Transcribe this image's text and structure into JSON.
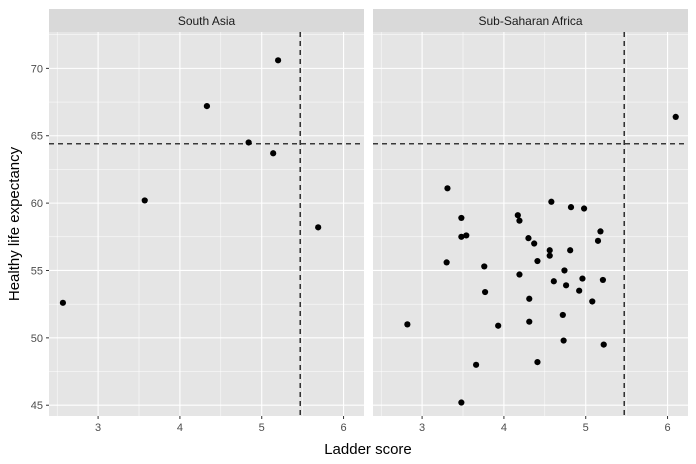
{
  "chart_data": {
    "type": "scatter",
    "xlabel": "Ladder score",
    "ylabel": "Healthy life expectancy",
    "xlim": [
      2.4,
      6.25
    ],
    "ylim": [
      44.2,
      72.7
    ],
    "x_ticks": [
      3,
      4,
      5,
      6
    ],
    "y_ticks": [
      45,
      50,
      55,
      60,
      65,
      70
    ],
    "grid": true,
    "reference_lines": {
      "x": 5.47,
      "y": 64.4
    },
    "colors": {
      "panel_bg": "#e5e5e5",
      "strip_bg": "#d9d9d9",
      "grid": "#ffffff",
      "point": "#000000",
      "ref_line": "#000000"
    },
    "facets": [
      {
        "label": "South Asia",
        "points": [
          {
            "x": 2.57,
            "y": 52.6
          },
          {
            "x": 3.57,
            "y": 60.2
          },
          {
            "x": 4.33,
            "y": 67.2
          },
          {
            "x": 4.84,
            "y": 64.5
          },
          {
            "x": 5.14,
            "y": 63.7
          },
          {
            "x": 5.2,
            "y": 70.6
          },
          {
            "x": 5.69,
            "y": 58.2
          }
        ]
      },
      {
        "label": "Sub-Saharan Africa",
        "points": [
          {
            "x": 2.82,
            "y": 51.0
          },
          {
            "x": 3.31,
            "y": 61.1
          },
          {
            "x": 3.3,
            "y": 55.6
          },
          {
            "x": 3.48,
            "y": 58.9
          },
          {
            "x": 3.48,
            "y": 57.5
          },
          {
            "x": 3.54,
            "y": 57.6
          },
          {
            "x": 3.48,
            "y": 45.2
          },
          {
            "x": 3.66,
            "y": 48.0
          },
          {
            "x": 3.76,
            "y": 55.3
          },
          {
            "x": 3.77,
            "y": 53.4
          },
          {
            "x": 3.93,
            "y": 50.9
          },
          {
            "x": 4.17,
            "y": 59.1
          },
          {
            "x": 4.19,
            "y": 58.7
          },
          {
            "x": 4.19,
            "y": 54.7
          },
          {
            "x": 4.3,
            "y": 57.4
          },
          {
            "x": 4.31,
            "y": 52.9
          },
          {
            "x": 4.31,
            "y": 51.2
          },
          {
            "x": 4.37,
            "y": 57.0
          },
          {
            "x": 4.41,
            "y": 55.7
          },
          {
            "x": 4.41,
            "y": 48.2
          },
          {
            "x": 4.56,
            "y": 56.5
          },
          {
            "x": 4.56,
            "y": 56.1
          },
          {
            "x": 4.58,
            "y": 60.1
          },
          {
            "x": 4.61,
            "y": 54.2
          },
          {
            "x": 4.72,
            "y": 51.7
          },
          {
            "x": 4.73,
            "y": 49.8
          },
          {
            "x": 4.74,
            "y": 55.0
          },
          {
            "x": 4.76,
            "y": 53.9
          },
          {
            "x": 4.81,
            "y": 56.5
          },
          {
            "x": 4.82,
            "y": 59.7
          },
          {
            "x": 4.92,
            "y": 53.5
          },
          {
            "x": 4.96,
            "y": 54.4
          },
          {
            "x": 4.98,
            "y": 59.6
          },
          {
            "x": 5.08,
            "y": 52.7
          },
          {
            "x": 5.15,
            "y": 57.2
          },
          {
            "x": 5.18,
            "y": 57.9
          },
          {
            "x": 5.21,
            "y": 54.3
          },
          {
            "x": 5.22,
            "y": 49.5
          },
          {
            "x": 6.1,
            "y": 66.4
          }
        ]
      }
    ]
  }
}
